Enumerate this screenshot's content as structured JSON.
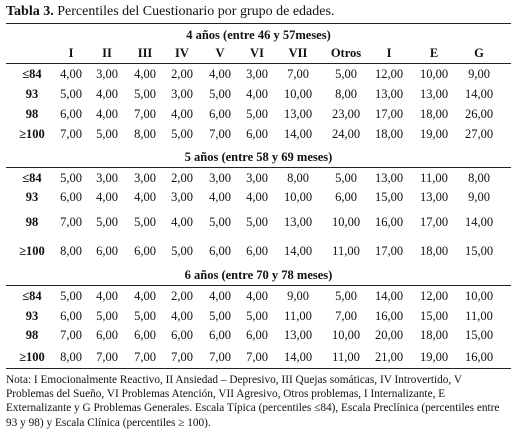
{
  "caption": {
    "number": "Tabla 3.",
    "text": "Percentiles del Cuestionario por grupo de edades."
  },
  "columns": [
    "I",
    "II",
    "III",
    "IV",
    "V",
    "VI",
    "VII",
    "Otros",
    "I",
    "E",
    "G"
  ],
  "groups": [
    {
      "title": "4 años (entre 46 y 57meses)",
      "rows": [
        {
          "label": "≤84",
          "values": [
            "4,00",
            "3,00",
            "4,00",
            "2,00",
            "4,00",
            "3,00",
            "7,00",
            "5,00",
            "12,00",
            "10,00",
            "9,00"
          ]
        },
        {
          "label": "93",
          "values": [
            "5,00",
            "4,00",
            "5,00",
            "3,00",
            "5,00",
            "4,00",
            "10,00",
            "8,00",
            "13,00",
            "13,00",
            "14,00"
          ]
        },
        {
          "label": "98",
          "values": [
            "6,00",
            "4,00",
            "7,00",
            "4,00",
            "6,00",
            "5,00",
            "13,00",
            "23,00",
            "17,00",
            "18,00",
            "26,00"
          ]
        },
        {
          "label": "≥100",
          "values": [
            "7,00",
            "5,00",
            "8,00",
            "5,00",
            "7,00",
            "6,00",
            "14,00",
            "24,00",
            "18,00",
            "19,00",
            "27,00"
          ]
        }
      ]
    },
    {
      "title": "5 años (entre 58 y 69 meses)",
      "rows": [
        {
          "label": "≤84",
          "values": [
            "5,00",
            "3,00",
            "3,00",
            "2,00",
            "3,00",
            "3,00",
            "8,00",
            "5,00",
            "13,00",
            "11,00",
            "8,00"
          ]
        },
        {
          "label": "93",
          "values": [
            "6,00",
            "4,00",
            "4,00",
            "3,00",
            "4,00",
            "4,00",
            "10,00",
            "6,00",
            "15,00",
            "13,00",
            "9,00"
          ]
        },
        {
          "label": "98",
          "values": [
            "7,00",
            "5,00",
            "5,00",
            "4,00",
            "5,00",
            "5,00",
            "13,00",
            "10,00",
            "16,00",
            "17,00",
            "14,00"
          ]
        },
        {
          "label": "≥100",
          "values": [
            "8,00",
            "6,00",
            "6,00",
            "5,00",
            "6,00",
            "6,00",
            "14,00",
            "11,00",
            "17,00",
            "18,00",
            "15,00"
          ]
        }
      ]
    },
    {
      "title": "6 años (entre 70 y 78 meses)",
      "rows": [
        {
          "label": "≤84",
          "values": [
            "5,00",
            "4,00",
            "4,00",
            "2,00",
            "4,00",
            "4,00",
            "9,00",
            "5,00",
            "14,00",
            "12,00",
            "10,00"
          ]
        },
        {
          "label": "93",
          "values": [
            "6,00",
            "5,00",
            "5,00",
            "4,00",
            "5,00",
            "5,00",
            "11,00",
            "7,00",
            "16,00",
            "15,00",
            "11,00"
          ]
        },
        {
          "label": "98",
          "values": [
            "7,00",
            "6,00",
            "6,00",
            "6,00",
            "6,00",
            "6,00",
            "13,00",
            "10,00",
            "20,00",
            "18,00",
            "15,00"
          ]
        },
        {
          "label": "≥100",
          "values": [
            "8,00",
            "7,00",
            "7,00",
            "7,00",
            "7,00",
            "7,00",
            "14,00",
            "11,00",
            "21,00",
            "19,00",
            "16,00"
          ]
        }
      ]
    }
  ],
  "note": "Nota: I Emocionalmente Reactivo, II Ansiedad – Depresivo, III Quejas somáticas, IV Introvertido, V Problemas del Sueño, VI Problemas Atención, VII Agresivo, Otros problemas, I Internalizante, E Externalizante y G Problemas Generales. Escala Típica (percentiles ≤84), Escala Preclínica (percentiles entre 93 y 98) y Escala Clínica (percentiles ≥ 100)."
}
